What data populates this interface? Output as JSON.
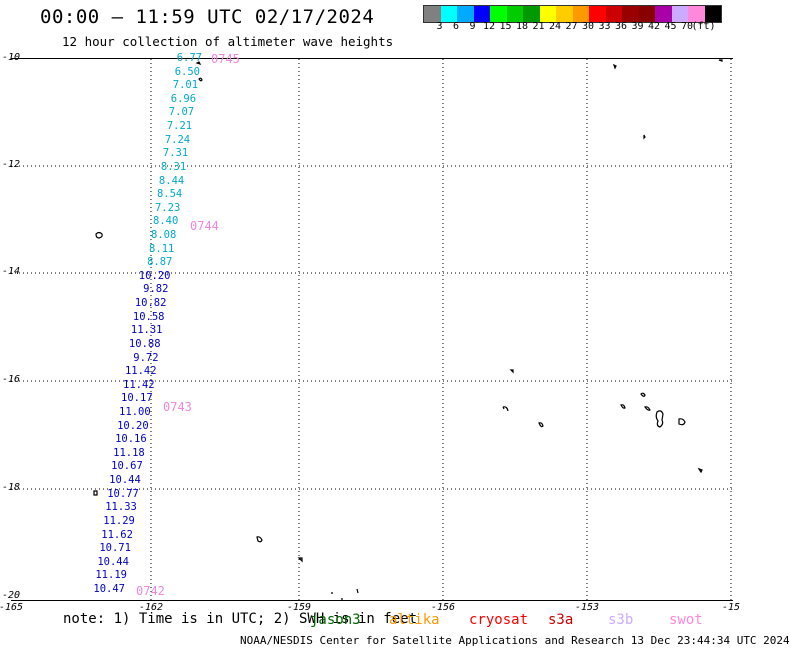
{
  "title": "00:00 – 11:59 UTC 02/17/2024",
  "subtitle": "12 hour collection of altimeter wave heights",
  "colorbar": {
    "colors": [
      "#808080",
      "#00ffff",
      "#00aaff",
      "#0000ff",
      "#00ff00",
      "#00cc00",
      "#009900",
      "#ffff00",
      "#ffcc00",
      "#ff9900",
      "#ff0000",
      "#cc0000",
      "#990000",
      "#880000",
      "#aa00aa",
      "#ccaaff",
      "#ff88dd",
      "#000000"
    ],
    "labels": [
      "3",
      "6",
      "9",
      "12",
      "15",
      "18",
      "21",
      "24",
      "27",
      "30",
      "33",
      "36",
      "39",
      "42",
      "45",
      "70",
      "(ft)"
    ]
  },
  "axes": {
    "y_ticks": [
      "-10",
      "-12",
      "-14",
      "-16",
      "-18",
      "-20"
    ],
    "x_ticks": [
      "-165",
      "-162",
      "-159",
      "-156",
      "-153",
      "-15"
    ]
  },
  "passes": [
    {
      "label": "0745"
    },
    {
      "label": "0744"
    },
    {
      "label": "0743"
    },
    {
      "label": "0742"
    }
  ],
  "wave_heights": [
    {
      "text": "6.77",
      "color": "#00aacc"
    },
    {
      "text": "6.50",
      "color": "#00aacc"
    },
    {
      "text": "7.01",
      "color": "#00aacc"
    },
    {
      "text": "6.96",
      "color": "#00aacc"
    },
    {
      "text": "7.07",
      "color": "#00aacc"
    },
    {
      "text": "7.21",
      "color": "#00aacc"
    },
    {
      "text": "7.24",
      "color": "#00aacc"
    },
    {
      "text": "7.31",
      "color": "#00aacc"
    },
    {
      "text": "8.31",
      "color": "#00aacc"
    },
    {
      "text": "8.44",
      "color": "#00aacc"
    },
    {
      "text": "8.54",
      "color": "#00aacc"
    },
    {
      "text": "7.23",
      "color": "#00aacc"
    },
    {
      "text": "8.40",
      "color": "#00aacc"
    },
    {
      "text": "8.08",
      "color": "#00aacc"
    },
    {
      "text": "8.11",
      "color": "#00aacc"
    },
    {
      "text": "8.87",
      "color": "#00aacc"
    },
    {
      "text": "10.20",
      "color": "#0000cc"
    },
    {
      "text": "9.82",
      "color": "#0000cc"
    },
    {
      "text": "10.82",
      "color": "#0000cc"
    },
    {
      "text": "10.58",
      "color": "#0000cc"
    },
    {
      "text": "11.31",
      "color": "#0000cc"
    },
    {
      "text": "10.88",
      "color": "#0000cc"
    },
    {
      "text": "9.72",
      "color": "#0000cc"
    },
    {
      "text": "11.42",
      "color": "#0000cc"
    },
    {
      "text": "11.42",
      "color": "#0000cc"
    },
    {
      "text": "10.17",
      "color": "#0000cc"
    },
    {
      "text": "11.00",
      "color": "#0000cc"
    },
    {
      "text": "10.20",
      "color": "#0000cc"
    },
    {
      "text": "10.16",
      "color": "#0000cc"
    },
    {
      "text": "11.18",
      "color": "#0000cc"
    },
    {
      "text": "10.67",
      "color": "#0000cc"
    },
    {
      "text": "10.44",
      "color": "#0000cc"
    },
    {
      "text": "10.77",
      "color": "#0000cc"
    },
    {
      "text": "11.33",
      "color": "#0000cc"
    },
    {
      "text": "11.29",
      "color": "#0000cc"
    },
    {
      "text": "11.62",
      "color": "#0000cc"
    },
    {
      "text": "10.71",
      "color": "#0000cc"
    },
    {
      "text": "10.44",
      "color": "#0000cc"
    },
    {
      "text": "11.19",
      "color": "#0000cc"
    },
    {
      "text": "10.47",
      "color": "#0000cc"
    }
  ],
  "note": "note: 1) Time is in UTC; 2) SWH is in feet",
  "legend": [
    {
      "label": "jason3",
      "color": "#006600"
    },
    {
      "label": "altika",
      "color": "#ff9900"
    },
    {
      "label": "cryosat",
      "color": "#ff0000"
    },
    {
      "label": "s3a",
      "color": "#cc0000"
    },
    {
      "label": "s3b",
      "color": "#ccaaff"
    },
    {
      "label": "swot",
      "color": "#ff88dd"
    }
  ],
  "footer": "NOAA/NESDIS Center for Satellite Applications and Research   13 Dec 23:44:34 UTC 2024"
}
